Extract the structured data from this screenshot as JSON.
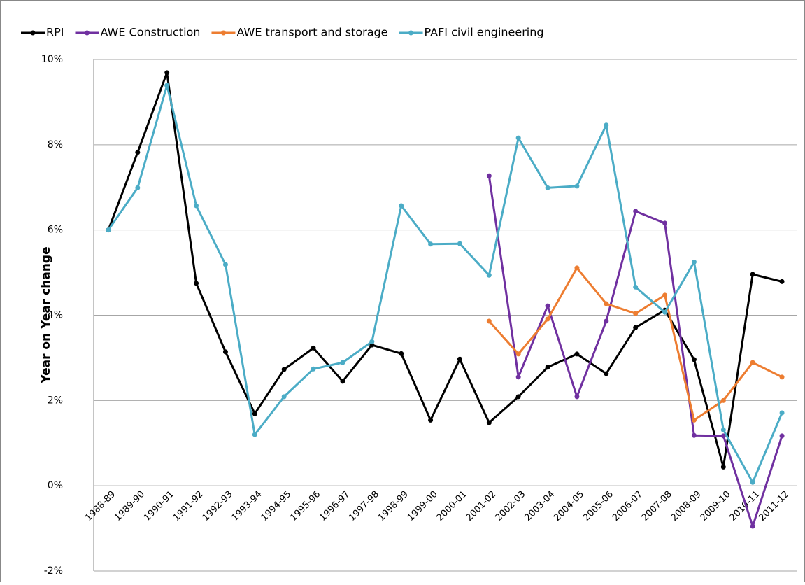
{
  "chart_data": {
    "type": "line",
    "y_label": "Year on Year change",
    "categories": [
      "1988-89",
      "1989-90",
      "1990-91",
      "1991-92",
      "1992-93",
      "1993-94",
      "1994-95",
      "1995-96",
      "1996-97",
      "1997-98",
      "1998-99",
      "1999-00",
      "2000-01",
      "2001-02",
      "2002-03",
      "2003-04",
      "2004-05",
      "2005-06",
      "2006-07",
      "2007-08",
      "2008-09",
      "2009-10",
      "2010-11",
      "2011-12"
    ],
    "series": [
      {
        "name": "RPI",
        "color": "#000000",
        "values": [
          6.0,
          7.82,
          9.69,
          4.75,
          3.14,
          1.69,
          2.73,
          3.23,
          2.45,
          3.3,
          3.1,
          1.54,
          2.97,
          1.48,
          2.09,
          2.78,
          3.09,
          2.63,
          3.71,
          4.12,
          2.96,
          0.44,
          4.96,
          4.79
        ]
      },
      {
        "name": "AWE Construction",
        "color": "#7030a0",
        "values": [
          null,
          null,
          null,
          null,
          null,
          null,
          null,
          null,
          null,
          null,
          null,
          null,
          null,
          7.27,
          2.55,
          4.22,
          2.09,
          3.86,
          6.44,
          6.16,
          1.18,
          1.17,
          -0.95,
          1.17
        ]
      },
      {
        "name": "AWE transport and storage",
        "color": "#ed7d31",
        "values": [
          null,
          null,
          null,
          null,
          null,
          null,
          null,
          null,
          null,
          null,
          null,
          null,
          null,
          3.86,
          3.09,
          3.91,
          5.11,
          4.27,
          4.04,
          4.47,
          1.54,
          2.0,
          2.89,
          2.55
        ]
      },
      {
        "name": "PAFI civil engineering",
        "color": "#4bacc6",
        "values": [
          6.0,
          6.99,
          9.39,
          6.57,
          5.19,
          1.2,
          2.09,
          2.74,
          2.89,
          3.38,
          6.57,
          5.67,
          5.68,
          4.94,
          8.16,
          6.99,
          7.03,
          8.46,
          4.66,
          4.07,
          5.25,
          1.31,
          0.08,
          1.71
        ]
      }
    ],
    "ylim": [
      -2,
      10
    ],
    "yticks": [
      {
        "value": -2,
        "label": "-2%"
      },
      {
        "value": 0,
        "label": "0%"
      },
      {
        "value": 2,
        "label": "2%"
      },
      {
        "value": 4,
        "label": "4%"
      },
      {
        "value": 6,
        "label": "6%"
      },
      {
        "value": 8,
        "label": "8%"
      },
      {
        "value": 10,
        "label": "10%"
      }
    ],
    "grid": true,
    "legend": "top"
  }
}
